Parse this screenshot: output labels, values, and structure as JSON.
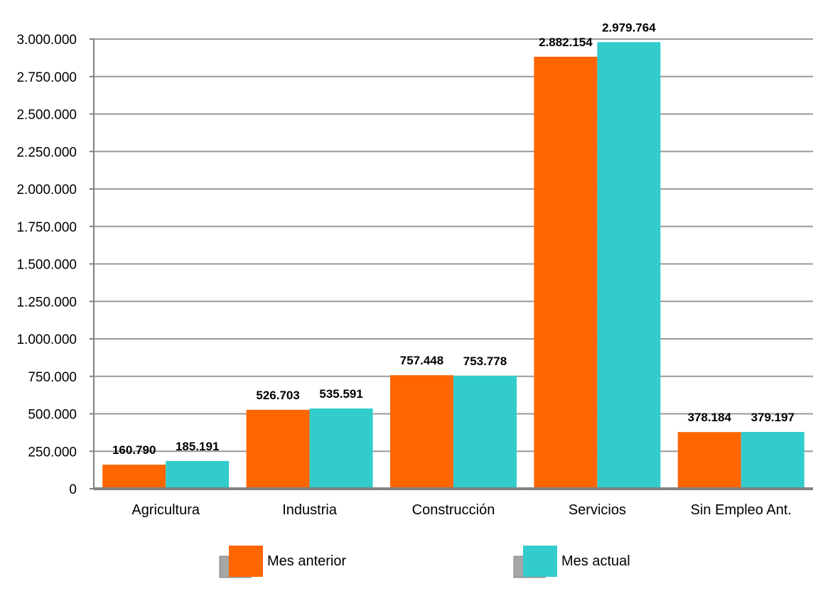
{
  "chart_data": {
    "type": "bar",
    "categories": [
      "Agricultura",
      "Industria",
      "Construcción",
      "Servicios",
      "Sin Empleo Ant."
    ],
    "series": [
      {
        "name": "Mes anterior",
        "color": "#FF6600",
        "values": [
          160790,
          526703,
          757448,
          2882154,
          378184
        ],
        "labels": [
          "160.790",
          "526.703",
          "757.448",
          "2.882.154",
          "378.184"
        ]
      },
      {
        "name": "Mes actual",
        "color": "#33CCCC",
        "values": [
          185191,
          535591,
          753778,
          2979764,
          379197
        ],
        "labels": [
          "185.191",
          "535.591",
          "753.778",
          "2.979.764",
          "379.197"
        ]
      }
    ],
    "ylim": [
      0,
      3000000
    ],
    "yticks": [
      0,
      250000,
      500000,
      750000,
      1000000,
      1250000,
      1500000,
      1750000,
      2000000,
      2250000,
      2500000,
      2750000,
      3000000
    ],
    "ytick_labels": [
      "0",
      "250.000",
      "500.000",
      "750.000",
      "1.000.000",
      "1.250.000",
      "1.500.000",
      "1.750.000",
      "2.000.000",
      "2.250.000",
      "2.500.000",
      "2.750.000",
      "3.000.000"
    ],
    "grid": true,
    "legend_position": "bottom"
  }
}
